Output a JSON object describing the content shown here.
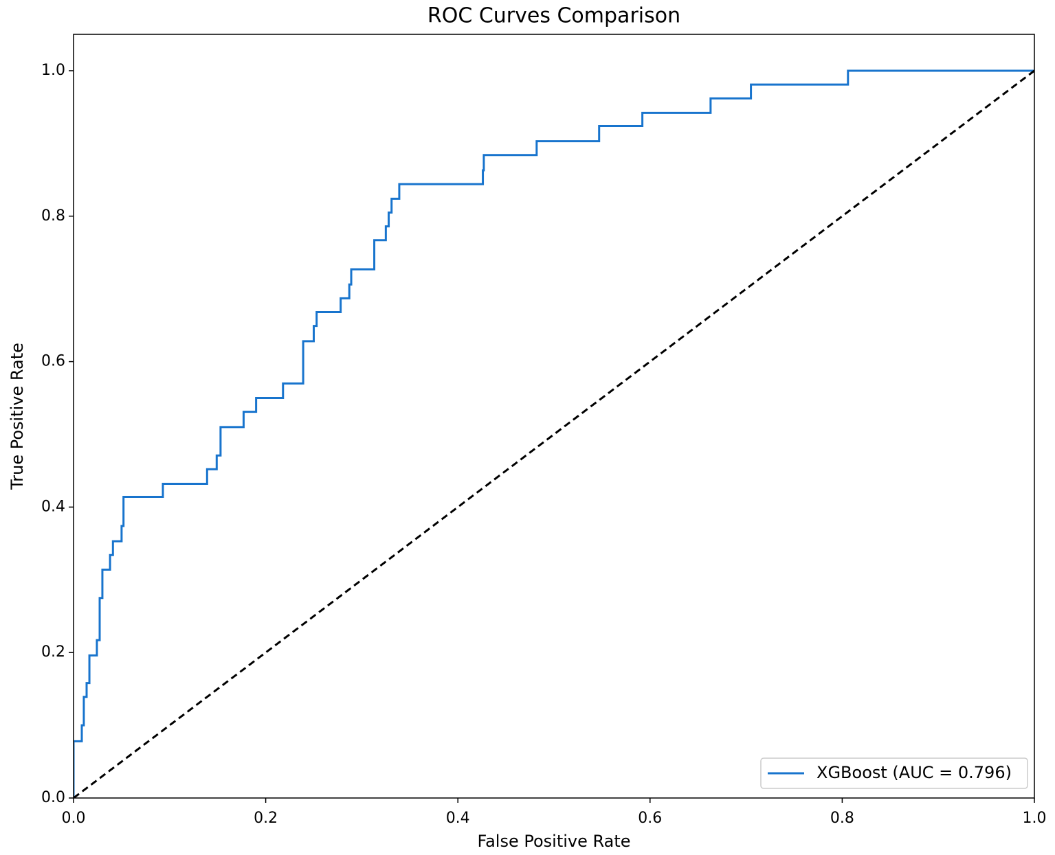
{
  "chart_data": {
    "type": "line",
    "title": "ROC Curves Comparison",
    "xlabel": "False Positive Rate",
    "ylabel": "True Positive Rate",
    "xlim": [
      0,
      1
    ],
    "ylim": [
      0,
      1.05
    ],
    "xticks": [
      {
        "value": 0,
        "label": "0.0"
      },
      {
        "value": 0.2,
        "label": "0.2"
      },
      {
        "value": 0.4,
        "label": "0.4"
      },
      {
        "value": 0.6,
        "label": "0.6"
      },
      {
        "value": 0.8,
        "label": "0.8"
      },
      {
        "value": 1,
        "label": "1.0"
      }
    ],
    "yticks": [
      {
        "value": 0,
        "label": "0.0"
      },
      {
        "value": 0.2,
        "label": "0.2"
      },
      {
        "value": 0.4,
        "label": "0.4"
      },
      {
        "value": 0.6,
        "label": "0.6"
      },
      {
        "value": 0.8,
        "label": "0.8"
      },
      {
        "value": 1,
        "label": "1.0"
      }
    ],
    "grid": false,
    "legend": "lower right",
    "series": [
      {
        "name": "XGBoost (AUC = 0.796)",
        "color": "#1874cd",
        "x": [
          0,
          0,
          0.0086,
          0.0086,
          0.0107,
          0.0107,
          0.0136,
          0.0136,
          0.0165,
          0.0165,
          0.0243,
          0.0243,
          0.0272,
          0.0272,
          0.03,
          0.03,
          0.038,
          0.038,
          0.041,
          0.041,
          0.05,
          0.05,
          0.052,
          0.052,
          0.093,
          0.093,
          0.139,
          0.139,
          0.149,
          0.149,
          0.153,
          0.153,
          0.177,
          0.177,
          0.19,
          0.19,
          0.218,
          0.218,
          0.239,
          0.239,
          0.25,
          0.25,
          0.253,
          0.253,
          0.278,
          0.278,
          0.287,
          0.287,
          0.289,
          0.289,
          0.313,
          0.313,
          0.325,
          0.325,
          0.328,
          0.328,
          0.331,
          0.331,
          0.339,
          0.339,
          0.426,
          0.426,
          0.427,
          0.427,
          0.482,
          0.482,
          0.547,
          0.547,
          0.592,
          0.592,
          0.663,
          0.663,
          0.705,
          0.705,
          0.806,
          0.806,
          1
        ],
        "values": [
          0,
          0.078,
          0.078,
          0.1,
          0.1,
          0.139,
          0.139,
          0.158,
          0.158,
          0.196,
          0.196,
          0.217,
          0.217,
          0.275,
          0.275,
          0.314,
          0.314,
          0.334,
          0.334,
          0.353,
          0.353,
          0.374,
          0.374,
          0.414,
          0.414,
          0.432,
          0.432,
          0.452,
          0.452,
          0.471,
          0.471,
          0.51,
          0.51,
          0.531,
          0.531,
          0.55,
          0.55,
          0.57,
          0.57,
          0.628,
          0.628,
          0.649,
          0.649,
          0.668,
          0.668,
          0.687,
          0.687,
          0.706,
          0.706,
          0.727,
          0.727,
          0.767,
          0.767,
          0.786,
          0.786,
          0.805,
          0.805,
          0.824,
          0.824,
          0.844,
          0.844,
          0.863,
          0.863,
          0.884,
          0.884,
          0.903,
          0.903,
          0.924,
          0.924,
          0.942,
          0.942,
          0.962,
          0.962,
          0.981,
          0.981,
          1,
          1
        ]
      },
      {
        "color": "#000000",
        "dashed": true,
        "x": [
          0,
          1
        ],
        "values": [
          0,
          1
        ]
      }
    ]
  }
}
